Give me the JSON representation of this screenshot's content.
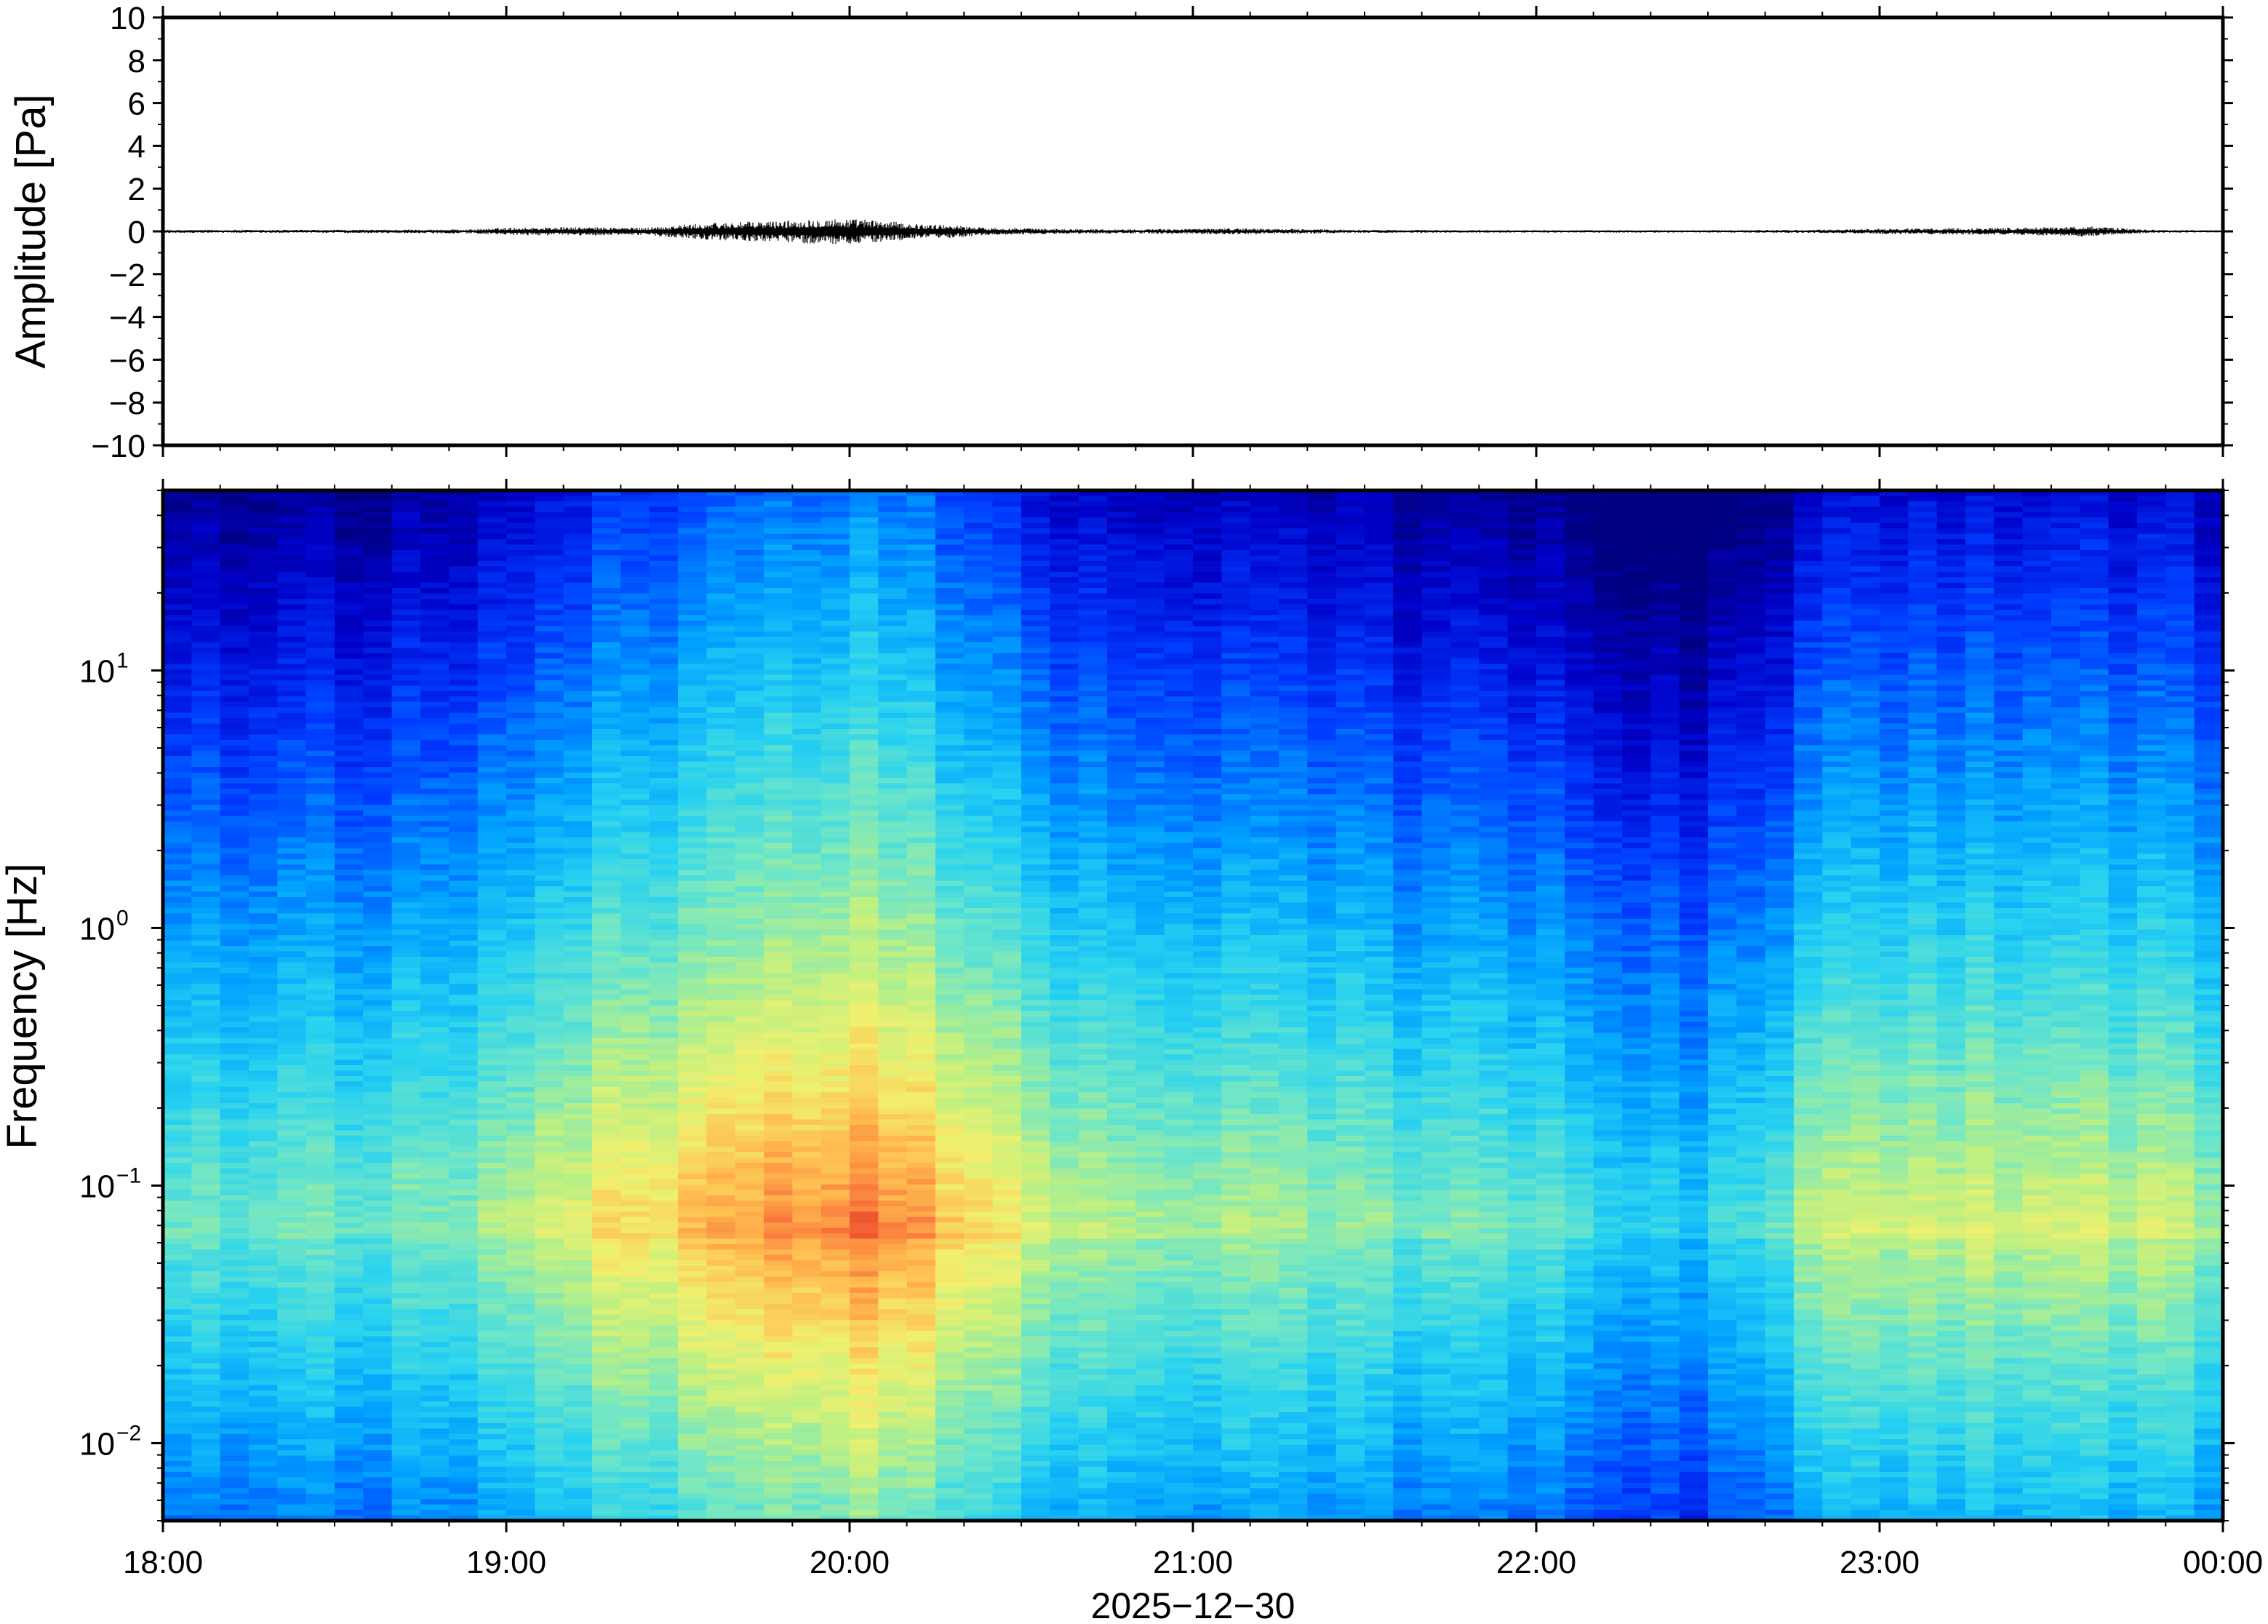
{
  "chart_data": [
    {
      "type": "line",
      "ylabel": "Amplitude [Pa]",
      "ylim": [
        -10,
        10
      ],
      "yticks": [
        "10",
        "8",
        "6",
        "4",
        "2",
        "0",
        "−2",
        "−4",
        "−6",
        "−8",
        "−10"
      ],
      "yticks_values": [
        10,
        8,
        6,
        4,
        2,
        0,
        -2,
        -4,
        -6,
        -8,
        -10
      ],
      "x_hours": [
        18,
        24
      ],
      "envelope": {
        "x": [
          18.0,
          18.5,
          18.9,
          19.0,
          19.2,
          19.4,
          19.5,
          19.6,
          19.7,
          19.8,
          19.9,
          20.0,
          20.1,
          20.2,
          20.3,
          20.4,
          20.6,
          20.8,
          21.0,
          21.1,
          21.5,
          22.0,
          22.5,
          22.8,
          23.0,
          23.2,
          23.4,
          23.55,
          23.6,
          23.7,
          23.8,
          24.0
        ],
        "amp": [
          0.15,
          0.15,
          0.2,
          0.35,
          0.4,
          0.35,
          0.6,
          0.8,
          0.9,
          1.0,
          1.2,
          1.2,
          1.0,
          0.7,
          0.6,
          0.35,
          0.25,
          0.2,
          0.25,
          0.3,
          0.15,
          0.12,
          0.12,
          0.15,
          0.25,
          0.3,
          0.35,
          0.45,
          0.5,
          0.3,
          0.15,
          0.1
        ]
      }
    },
    {
      "type": "heatmap",
      "ylabel": "Frequency [Hz]",
      "yscale": "log",
      "ylim": [
        0.005,
        50
      ],
      "yticks": [
        {
          "base": "10",
          "exp": "1",
          "value": 10
        },
        {
          "base": "10",
          "exp": "0",
          "value": 1
        },
        {
          "base": "10",
          "exp": "−1",
          "value": 0.1
        },
        {
          "base": "10",
          "exp": "−2",
          "value": 0.01
        }
      ],
      "colormap": "jet",
      "xlabel": "2025−12−30",
      "xticks": [
        "18:00",
        "19:00",
        "20:00",
        "21:00",
        "22:00",
        "23:00",
        "00:00"
      ],
      "xticks_hours": [
        18,
        19,
        20,
        21,
        22,
        23,
        24
      ]
    }
  ]
}
